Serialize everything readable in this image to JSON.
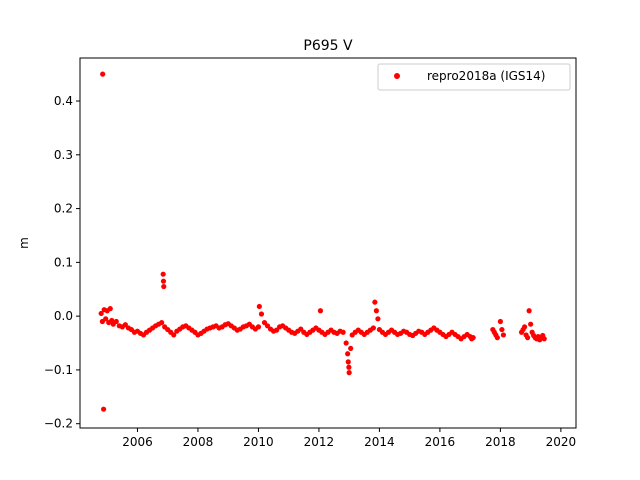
{
  "chart_data": {
    "type": "scatter",
    "title": "P695 V",
    "xlabel": "",
    "ylabel": "m",
    "xlim": [
      2004.1,
      2020.5
    ],
    "ylim": [
      -0.208,
      0.48
    ],
    "x_ticks": [
      2006,
      2008,
      2010,
      2012,
      2014,
      2016,
      2018,
      2020
    ],
    "x_tick_labels": [
      "2006",
      "2008",
      "2010",
      "2012",
      "2014",
      "2016",
      "2018",
      "2020"
    ],
    "y_ticks": [
      -0.2,
      -0.1,
      0.0,
      0.1,
      0.2,
      0.3,
      0.4
    ],
    "y_tick_labels": [
      "−0.2",
      "−0.1",
      "0.0",
      "0.1",
      "0.2",
      "0.3",
      "0.4"
    ],
    "grid": false,
    "legend_position": "top-right",
    "series": [
      {
        "name": "repro2018a (IGS14)",
        "color": "#ff0000",
        "marker": "circle",
        "points": [
          [
            2004.85,
            0.45
          ],
          [
            2004.88,
            -0.173
          ],
          [
            2004.8,
            0.005
          ],
          [
            2004.84,
            -0.01
          ],
          [
            2004.9,
            0.012
          ],
          [
            2004.95,
            -0.005
          ],
          [
            2005.0,
            0.01
          ],
          [
            2005.05,
            -0.012
          ],
          [
            2005.1,
            0.014
          ],
          [
            2005.15,
            -0.008
          ],
          [
            2005.2,
            -0.015
          ],
          [
            2005.3,
            -0.01
          ],
          [
            2005.4,
            -0.018
          ],
          [
            2005.5,
            -0.02
          ],
          [
            2005.6,
            -0.016
          ],
          [
            2005.7,
            -0.022
          ],
          [
            2005.8,
            -0.025
          ],
          [
            2005.9,
            -0.03
          ],
          [
            2006.0,
            -0.028
          ],
          [
            2006.1,
            -0.032
          ],
          [
            2006.2,
            -0.035
          ],
          [
            2006.3,
            -0.03
          ],
          [
            2006.4,
            -0.026
          ],
          [
            2006.5,
            -0.022
          ],
          [
            2006.6,
            -0.018
          ],
          [
            2006.7,
            -0.015
          ],
          [
            2006.85,
            0.078
          ],
          [
            2006.86,
            0.065
          ],
          [
            2006.87,
            0.055
          ],
          [
            2006.8,
            -0.012
          ],
          [
            2006.9,
            -0.02
          ],
          [
            2007.0,
            -0.025
          ],
          [
            2007.1,
            -0.03
          ],
          [
            2007.2,
            -0.035
          ],
          [
            2007.3,
            -0.028
          ],
          [
            2007.4,
            -0.024
          ],
          [
            2007.5,
            -0.02
          ],
          [
            2007.6,
            -0.018
          ],
          [
            2007.7,
            -0.022
          ],
          [
            2007.8,
            -0.026
          ],
          [
            2007.9,
            -0.03
          ],
          [
            2008.0,
            -0.035
          ],
          [
            2008.1,
            -0.032
          ],
          [
            2008.2,
            -0.028
          ],
          [
            2008.3,
            -0.024
          ],
          [
            2008.4,
            -0.022
          ],
          [
            2008.5,
            -0.02
          ],
          [
            2008.6,
            -0.018
          ],
          [
            2008.7,
            -0.022
          ],
          [
            2008.8,
            -0.02
          ],
          [
            2008.9,
            -0.016
          ],
          [
            2009.0,
            -0.014
          ],
          [
            2009.1,
            -0.018
          ],
          [
            2009.2,
            -0.022
          ],
          [
            2009.3,
            -0.026
          ],
          [
            2009.4,
            -0.024
          ],
          [
            2009.5,
            -0.02
          ],
          [
            2009.6,
            -0.018
          ],
          [
            2009.7,
            -0.015
          ],
          [
            2009.8,
            -0.02
          ],
          [
            2009.9,
            -0.024
          ],
          [
            2010.0,
            -0.02
          ],
          [
            2010.03,
            0.018
          ],
          [
            2010.1,
            0.004
          ],
          [
            2010.2,
            -0.012
          ],
          [
            2010.3,
            -0.018
          ],
          [
            2010.4,
            -0.024
          ],
          [
            2010.5,
            -0.028
          ],
          [
            2010.6,
            -0.026
          ],
          [
            2010.7,
            -0.02
          ],
          [
            2010.8,
            -0.018
          ],
          [
            2010.9,
            -0.022
          ],
          [
            2011.0,
            -0.026
          ],
          [
            2011.1,
            -0.03
          ],
          [
            2011.2,
            -0.032
          ],
          [
            2011.3,
            -0.028
          ],
          [
            2011.4,
            -0.024
          ],
          [
            2011.5,
            -0.03
          ],
          [
            2011.6,
            -0.034
          ],
          [
            2011.7,
            -0.03
          ],
          [
            2011.8,
            -0.026
          ],
          [
            2011.9,
            -0.022
          ],
          [
            2012.0,
            -0.026
          ],
          [
            2012.05,
            0.01
          ],
          [
            2012.1,
            -0.03
          ],
          [
            2012.2,
            -0.034
          ],
          [
            2012.3,
            -0.03
          ],
          [
            2012.4,
            -0.026
          ],
          [
            2012.5,
            -0.03
          ],
          [
            2012.6,
            -0.032
          ],
          [
            2012.7,
            -0.028
          ],
          [
            2012.8,
            -0.03
          ],
          [
            2012.9,
            -0.05
          ],
          [
            2012.95,
            -0.07
          ],
          [
            2012.97,
            -0.085
          ],
          [
            2012.99,
            -0.095
          ],
          [
            2013.0,
            -0.105
          ],
          [
            2013.05,
            -0.06
          ],
          [
            2013.1,
            -0.035
          ],
          [
            2013.2,
            -0.03
          ],
          [
            2013.3,
            -0.026
          ],
          [
            2013.4,
            -0.03
          ],
          [
            2013.5,
            -0.034
          ],
          [
            2013.6,
            -0.03
          ],
          [
            2013.7,
            -0.026
          ],
          [
            2013.8,
            -0.022
          ],
          [
            2013.85,
            0.026
          ],
          [
            2013.9,
            0.01
          ],
          [
            2013.95,
            -0.005
          ],
          [
            2014.0,
            -0.025
          ],
          [
            2014.1,
            -0.03
          ],
          [
            2014.2,
            -0.034
          ],
          [
            2014.3,
            -0.03
          ],
          [
            2014.4,
            -0.026
          ],
          [
            2014.5,
            -0.03
          ],
          [
            2014.6,
            -0.034
          ],
          [
            2014.7,
            -0.032
          ],
          [
            2014.8,
            -0.028
          ],
          [
            2014.9,
            -0.03
          ],
          [
            2015.0,
            -0.034
          ],
          [
            2015.1,
            -0.036
          ],
          [
            2015.2,
            -0.032
          ],
          [
            2015.3,
            -0.028
          ],
          [
            2015.4,
            -0.03
          ],
          [
            2015.5,
            -0.034
          ],
          [
            2015.6,
            -0.03
          ],
          [
            2015.7,
            -0.026
          ],
          [
            2015.8,
            -0.022
          ],
          [
            2015.9,
            -0.026
          ],
          [
            2016.0,
            -0.03
          ],
          [
            2016.1,
            -0.034
          ],
          [
            2016.2,
            -0.038
          ],
          [
            2016.3,
            -0.034
          ],
          [
            2016.4,
            -0.03
          ],
          [
            2016.5,
            -0.034
          ],
          [
            2016.6,
            -0.038
          ],
          [
            2016.7,
            -0.042
          ],
          [
            2016.8,
            -0.038
          ],
          [
            2016.9,
            -0.034
          ],
          [
            2017.0,
            -0.038
          ],
          [
            2017.05,
            -0.042
          ],
          [
            2017.1,
            -0.04
          ],
          [
            2017.75,
            -0.025
          ],
          [
            2017.8,
            -0.03
          ],
          [
            2017.85,
            -0.035
          ],
          [
            2017.9,
            -0.04
          ],
          [
            2018.0,
            -0.01
          ],
          [
            2018.05,
            -0.025
          ],
          [
            2018.1,
            -0.035
          ],
          [
            2018.7,
            -0.03
          ],
          [
            2018.75,
            -0.025
          ],
          [
            2018.8,
            -0.02
          ],
          [
            2018.85,
            -0.035
          ],
          [
            2018.9,
            -0.04
          ],
          [
            2018.95,
            0.01
          ],
          [
            2019.0,
            -0.015
          ],
          [
            2019.05,
            -0.03
          ],
          [
            2019.1,
            -0.036
          ],
          [
            2019.15,
            -0.04
          ],
          [
            2019.2,
            -0.042
          ],
          [
            2019.25,
            -0.038
          ],
          [
            2019.3,
            -0.044
          ],
          [
            2019.35,
            -0.04
          ],
          [
            2019.4,
            -0.036
          ],
          [
            2019.45,
            -0.042
          ]
        ]
      }
    ]
  }
}
